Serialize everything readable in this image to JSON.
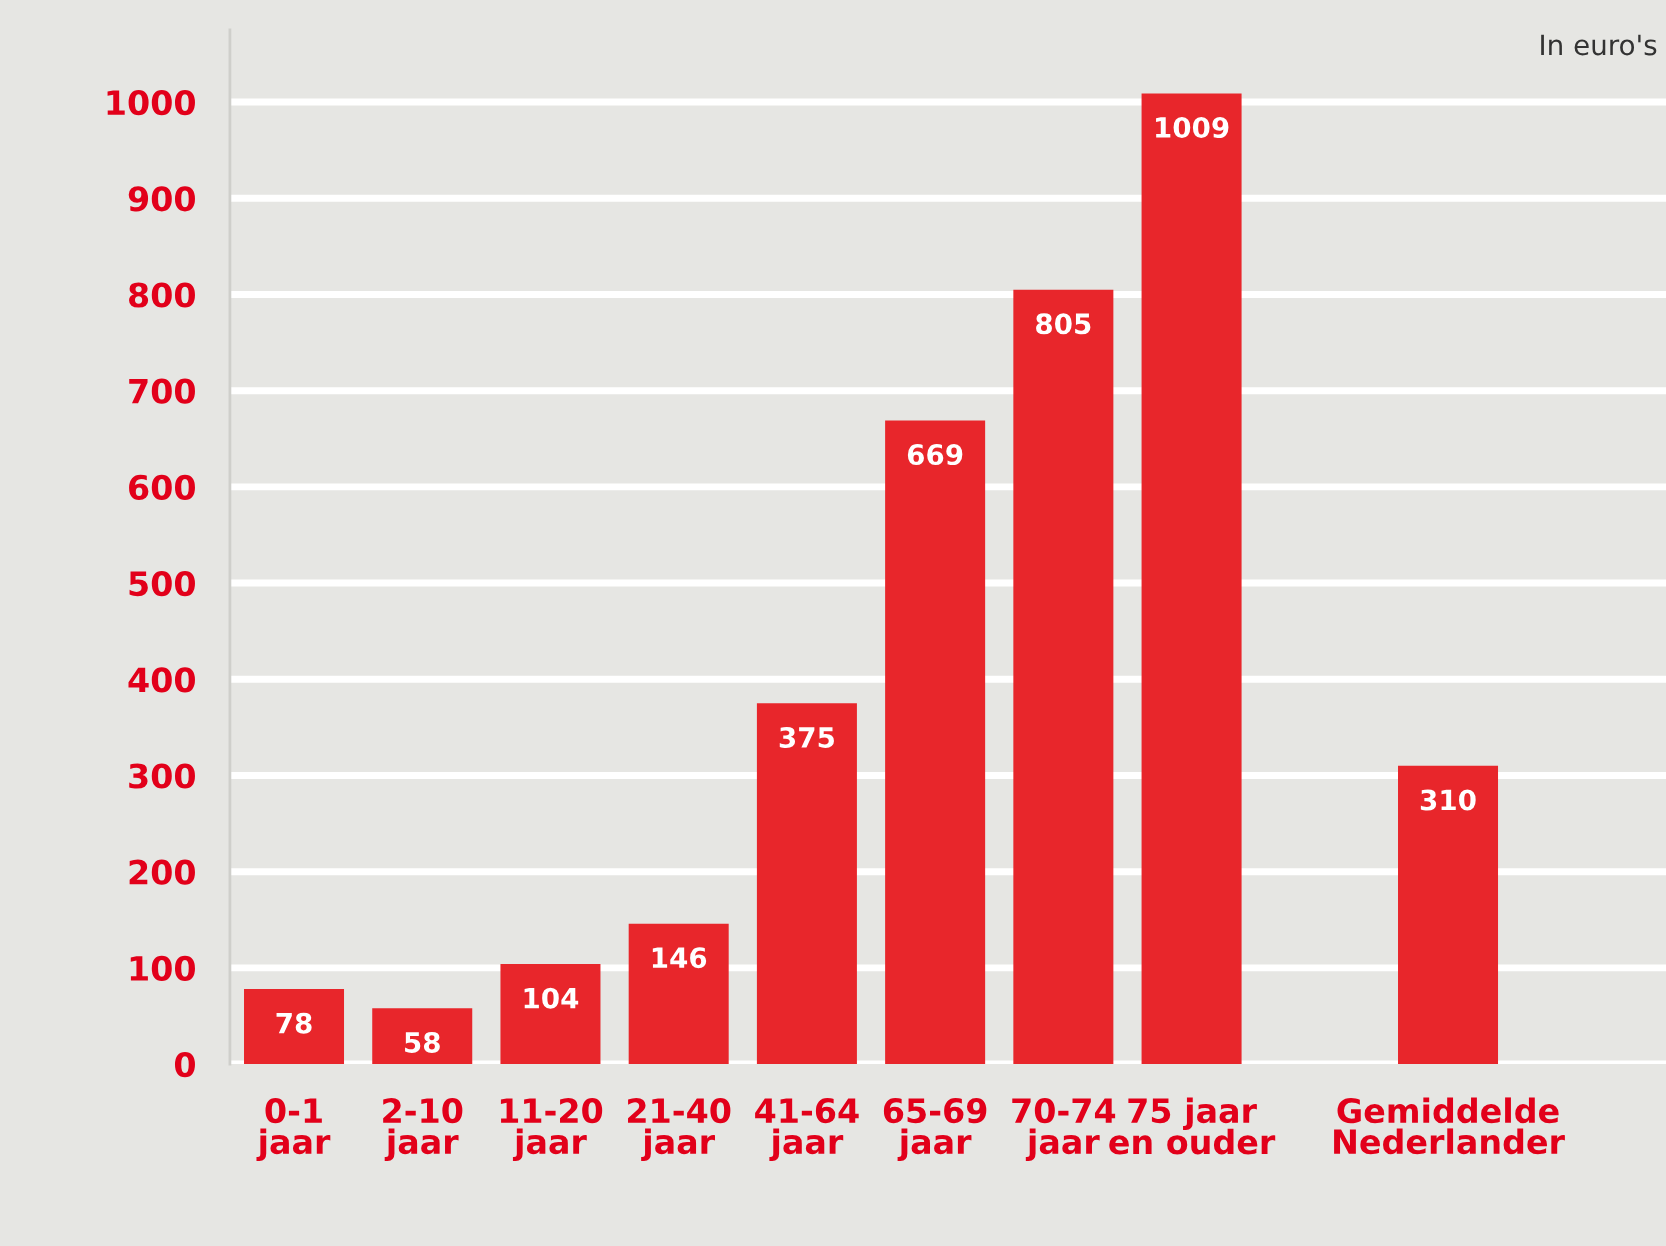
{
  "chart_data": {
    "type": "bar",
    "categories": [
      "0-1\njaar",
      "2-10\njaar",
      "11-20\njaar",
      "21-40\njaar",
      "41-64\njaar",
      "65-69\njaar",
      "70-74\njaar",
      "75 jaar\nen ouder",
      null,
      "Gemiddelde\nNederlander"
    ],
    "values": [
      78,
      58,
      104,
      146,
      375,
      669,
      805,
      1009,
      null,
      310
    ],
    "color": "#e8262b",
    "ylim": [
      0,
      1075
    ],
    "yticks": [
      0,
      100,
      200,
      300,
      400,
      500,
      600,
      700,
      800,
      900,
      1000
    ],
    "grid": "y",
    "data_labels": true,
    "annotations": [
      "In euro's"
    ]
  }
}
